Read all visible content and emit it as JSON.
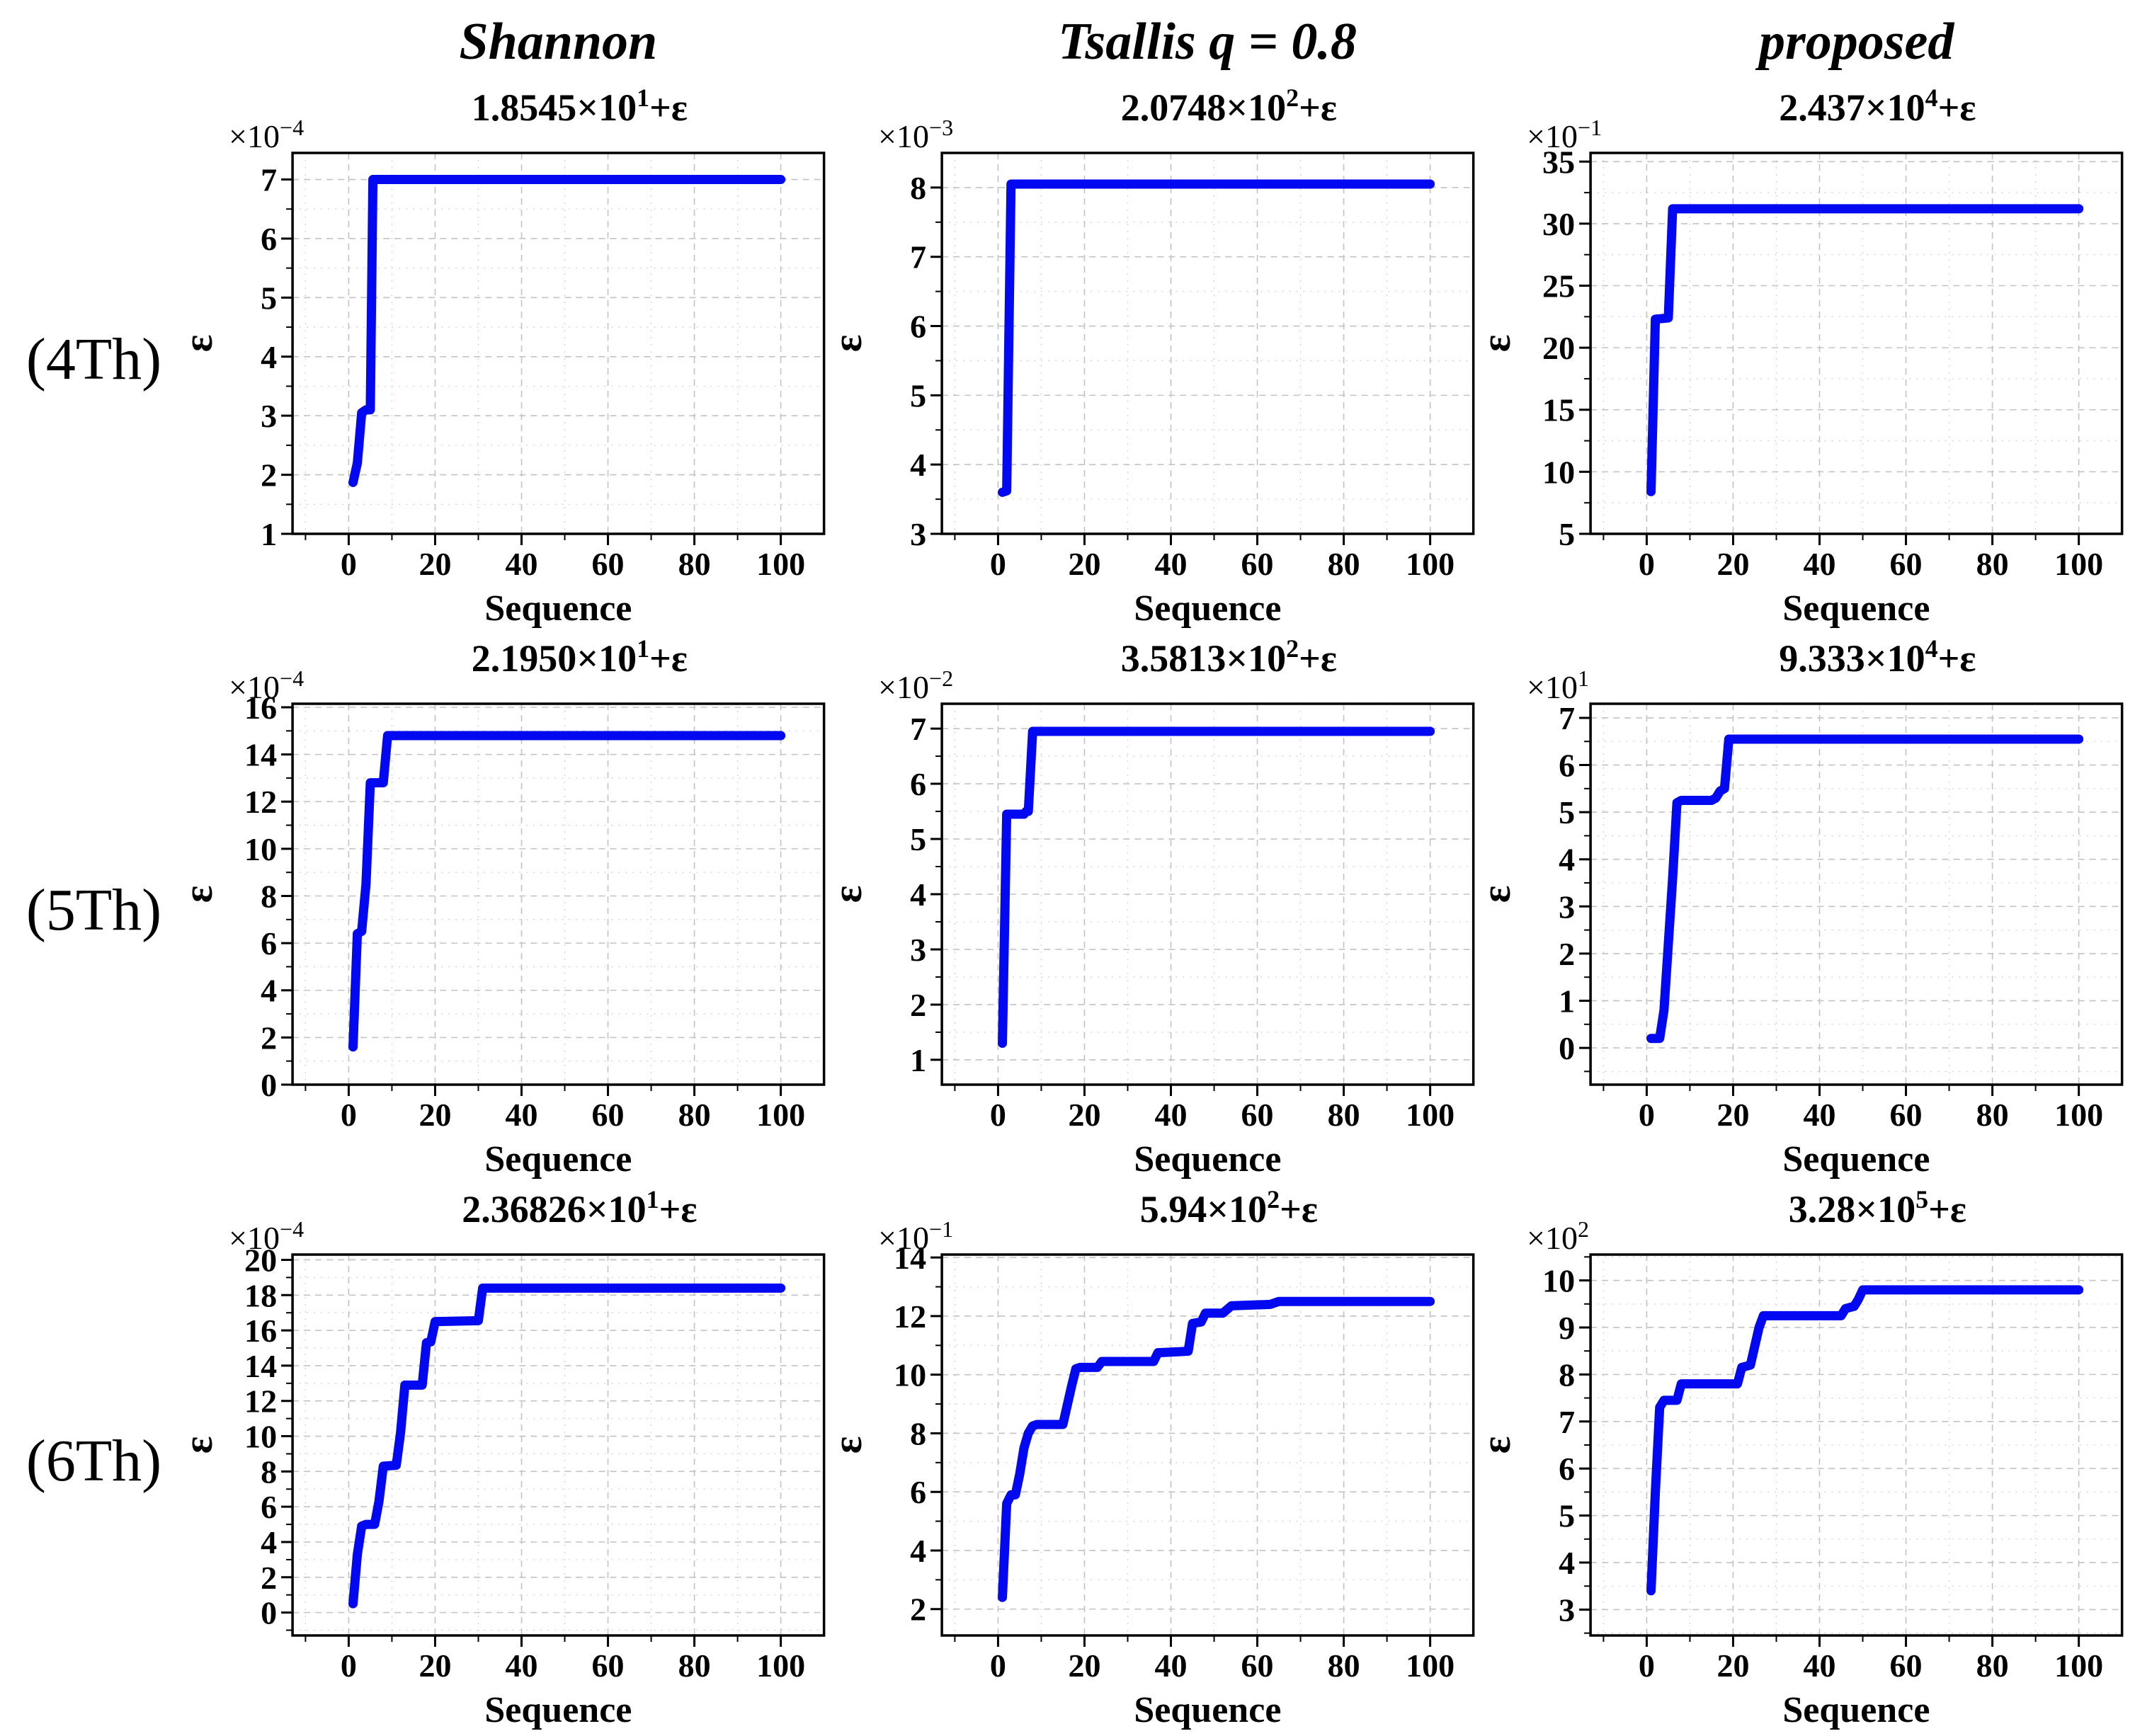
{
  "columns": [
    {
      "label": "Shannon"
    },
    {
      "label": "Tsallis q = 0.8"
    },
    {
      "label": "proposed"
    }
  ],
  "rows": [
    {
      "label": "(4Th)"
    },
    {
      "label": "(5Th)"
    },
    {
      "label": "(6Th)"
    }
  ],
  "style": {
    "line_color": "#0208f0",
    "frame_color": "#000000",
    "major_grid_color": "#c3c3c3",
    "minor_grid_color": "#d2d2d2",
    "text_color": "#000000"
  },
  "chart_data": [
    {
      "type": "line",
      "row": "(4Th)",
      "col": "Shannon",
      "title_mantissa": "1.8545",
      "title_exponent": "1",
      "title_suffix": "+ε",
      "scale_prefix": "×10",
      "scale_exponent": "−4",
      "xlabel": "Sequence",
      "ylabel": "ε",
      "x_ticks": [
        0,
        20,
        40,
        60,
        80,
        100
      ],
      "xlim": [
        -13,
        110
      ],
      "y_ticks": [
        1,
        2,
        3,
        4,
        5,
        6,
        7
      ],
      "ylim": [
        1,
        7.45
      ],
      "points": [
        [
          1,
          1.87
        ],
        [
          2,
          2.2
        ],
        [
          3,
          3.05
        ],
        [
          4,
          3.1
        ],
        [
          5,
          3.1
        ],
        [
          5.6,
          7.0
        ],
        [
          100,
          7.0
        ]
      ]
    },
    {
      "type": "line",
      "row": "(4Th)",
      "col": "Tsallis q = 0.8",
      "title_mantissa": "2.0748",
      "title_exponent": "2",
      "title_suffix": "+ε",
      "scale_prefix": "×10",
      "scale_exponent": "−3",
      "xlabel": "Sequence",
      "ylabel": "ε",
      "x_ticks": [
        0,
        20,
        40,
        60,
        80,
        100
      ],
      "xlim": [
        -13,
        110
      ],
      "y_ticks": [
        3,
        4,
        5,
        6,
        7,
        8
      ],
      "ylim": [
        3,
        8.5
      ],
      "points": [
        [
          1,
          3.6
        ],
        [
          2,
          3.62
        ],
        [
          3,
          8.05
        ],
        [
          100,
          8.05
        ]
      ]
    },
    {
      "type": "line",
      "row": "(4Th)",
      "col": "proposed",
      "title_mantissa": "2.437",
      "title_exponent": "4",
      "title_suffix": "+ε",
      "scale_prefix": "×10",
      "scale_exponent": "−1",
      "xlabel": "Sequence",
      "ylabel": "ε",
      "x_ticks": [
        0,
        20,
        40,
        60,
        80,
        100
      ],
      "xlim": [
        -13,
        110
      ],
      "y_ticks": [
        5,
        10,
        15,
        20,
        25,
        30,
        35
      ],
      "ylim": [
        5,
        35.7
      ],
      "points": [
        [
          1,
          8.4
        ],
        [
          2,
          22.3
        ],
        [
          5,
          22.4
        ],
        [
          6,
          31.2
        ],
        [
          100,
          31.2
        ]
      ]
    },
    {
      "type": "line",
      "row": "(5Th)",
      "col": "Shannon",
      "title_mantissa": "2.1950",
      "title_exponent": "1",
      "title_suffix": "+ε",
      "scale_prefix": "×10",
      "scale_exponent": "−4",
      "xlabel": "Sequence",
      "ylabel": "ε",
      "x_ticks": [
        0,
        20,
        40,
        60,
        80,
        100
      ],
      "xlim": [
        -13,
        110
      ],
      "y_ticks": [
        0,
        2,
        4,
        6,
        8,
        10,
        12,
        14,
        16
      ],
      "ylim": [
        0,
        16.15
      ],
      "points": [
        [
          1,
          1.6
        ],
        [
          2,
          6.4
        ],
        [
          3,
          6.5
        ],
        [
          4,
          8.5
        ],
        [
          5,
          12.8
        ],
        [
          8,
          12.8
        ],
        [
          9,
          14.8
        ],
        [
          100,
          14.8
        ]
      ]
    },
    {
      "type": "line",
      "row": "(5Th)",
      "col": "Tsallis q = 0.8",
      "title_mantissa": "3.5813",
      "title_exponent": "2",
      "title_suffix": "+ε",
      "scale_prefix": "×10",
      "scale_exponent": "−2",
      "xlabel": "Sequence",
      "ylabel": "ε",
      "x_ticks": [
        0,
        20,
        40,
        60,
        80,
        100
      ],
      "xlim": [
        -13,
        110
      ],
      "y_ticks": [
        1,
        2,
        3,
        4,
        5,
        6,
        7
      ],
      "ylim": [
        0.55,
        7.45
      ],
      "points": [
        [
          1,
          1.3
        ],
        [
          2,
          5.45
        ],
        [
          6,
          5.45
        ],
        [
          6.5,
          5.5
        ],
        [
          7,
          5.5
        ],
        [
          8,
          6.95
        ],
        [
          100,
          6.95
        ]
      ]
    },
    {
      "type": "line",
      "row": "(5Th)",
      "col": "proposed",
      "title_mantissa": "9.333",
      "title_exponent": "4",
      "title_suffix": "+ε",
      "scale_prefix": "×10",
      "scale_exponent": "1",
      "xlabel": "Sequence",
      "ylabel": "ε",
      "x_ticks": [
        0,
        20,
        40,
        60,
        80,
        100
      ],
      "xlim": [
        -13,
        110
      ],
      "y_ticks": [
        0,
        1,
        2,
        3,
        4,
        5,
        6,
        7
      ],
      "ylim": [
        -0.78,
        7.3
      ],
      "points": [
        [
          1,
          0.2
        ],
        [
          3,
          0.2
        ],
        [
          4,
          0.8
        ],
        [
          5,
          2.2
        ],
        [
          6,
          3.6
        ],
        [
          7,
          5.2
        ],
        [
          8,
          5.25
        ],
        [
          15,
          5.25
        ],
        [
          16,
          5.3
        ],
        [
          17,
          5.45
        ],
        [
          18,
          5.5
        ],
        [
          19,
          6.55
        ],
        [
          100,
          6.55
        ]
      ]
    },
    {
      "type": "line",
      "row": "(6Th)",
      "col": "Shannon",
      "title_mantissa": "2.36826",
      "title_exponent": "1",
      "title_suffix": "+ε",
      "scale_prefix": "×10",
      "scale_exponent": "−4",
      "xlabel": "Sequence",
      "ylabel": "ε",
      "x_ticks": [
        0,
        20,
        40,
        60,
        80,
        100
      ],
      "xlim": [
        -13,
        110
      ],
      "y_ticks": [
        0,
        2,
        4,
        6,
        8,
        10,
        12,
        14,
        16,
        18,
        20
      ],
      "ylim": [
        -1.3,
        20.3
      ],
      "points": [
        [
          1,
          0.5
        ],
        [
          2,
          3.3
        ],
        [
          3,
          4.9
        ],
        [
          4,
          5.0
        ],
        [
          6,
          5.0
        ],
        [
          7,
          6.3
        ],
        [
          8,
          8.3
        ],
        [
          11,
          8.35
        ],
        [
          12,
          10.2
        ],
        [
          13,
          12.9
        ],
        [
          17,
          12.9
        ],
        [
          18,
          15.3
        ],
        [
          19,
          15.35
        ],
        [
          20,
          16.5
        ],
        [
          30,
          16.55
        ],
        [
          31,
          18.4
        ],
        [
          100,
          18.4
        ]
      ]
    },
    {
      "type": "line",
      "row": "(6Th)",
      "col": "Tsallis q = 0.8",
      "title_mantissa": "5.94",
      "title_exponent": "2",
      "title_suffix": "+ε",
      "scale_prefix": "×10",
      "scale_exponent": "−1",
      "xlabel": "Sequence",
      "ylabel": "ε",
      "x_ticks": [
        0,
        20,
        40,
        60,
        80,
        100
      ],
      "xlim": [
        -13,
        110
      ],
      "y_ticks": [
        2,
        4,
        6,
        8,
        10,
        12,
        14
      ],
      "ylim": [
        1.1,
        14.1
      ],
      "points": [
        [
          1,
          2.4
        ],
        [
          2,
          5.6
        ],
        [
          3,
          5.9
        ],
        [
          4,
          5.9
        ],
        [
          5,
          6.6
        ],
        [
          6,
          7.5
        ],
        [
          7,
          8.0
        ],
        [
          8,
          8.25
        ],
        [
          9,
          8.3
        ],
        [
          15,
          8.3
        ],
        [
          17,
          9.6
        ],
        [
          18,
          10.2
        ],
        [
          19,
          10.25
        ],
        [
          23,
          10.25
        ],
        [
          24,
          10.45
        ],
        [
          36,
          10.45
        ],
        [
          37,
          10.75
        ],
        [
          44,
          10.8
        ],
        [
          45,
          11.75
        ],
        [
          47,
          11.8
        ],
        [
          48,
          12.1
        ],
        [
          52,
          12.1
        ],
        [
          54,
          12.35
        ],
        [
          63,
          12.4
        ],
        [
          65,
          12.5
        ],
        [
          100,
          12.5
        ]
      ]
    },
    {
      "type": "line",
      "row": "(6Th)",
      "col": "proposed",
      "title_mantissa": "3.28",
      "title_exponent": "5",
      "title_suffix": "+ε",
      "scale_prefix": "×10",
      "scale_exponent": "2",
      "xlabel": "Sequence",
      "ylabel": "ε",
      "x_ticks": [
        0,
        20,
        40,
        60,
        80,
        100
      ],
      "xlim": [
        -13,
        110
      ],
      "y_ticks": [
        3,
        4,
        5,
        6,
        7,
        8,
        9,
        10
      ],
      "ylim": [
        2.45,
        10.55
      ],
      "points": [
        [
          1,
          3.4
        ],
        [
          2,
          5.5
        ],
        [
          3,
          7.3
        ],
        [
          4,
          7.45
        ],
        [
          7,
          7.45
        ],
        [
          8,
          7.8
        ],
        [
          21,
          7.8
        ],
        [
          22,
          8.15
        ],
        [
          24,
          8.2
        ],
        [
          25,
          8.6
        ],
        [
          26,
          9.0
        ],
        [
          27,
          9.25
        ],
        [
          45,
          9.25
        ],
        [
          46,
          9.4
        ],
        [
          48,
          9.45
        ],
        [
          49,
          9.6
        ],
        [
          50,
          9.8
        ],
        [
          100,
          9.8
        ]
      ]
    }
  ]
}
